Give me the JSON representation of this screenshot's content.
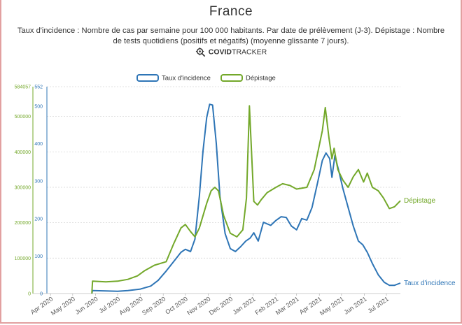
{
  "header": {
    "title": "France",
    "subtitle_line1": "Taux d'incidence : Nombre de cas par semaine pour 100 000 habitants. Par date de prélèvement (J-3). Dépistage : Nombre",
    "subtitle_line2": "de tests quotidiens (positifs et négatifs) (moyenne glissante 7 jours).",
    "brand_bold": "COVID",
    "brand_rest": "TRACKER",
    "brand_icon": "virus-search-icon"
  },
  "colors": {
    "incidence": "#2e75b6",
    "depistage": "#73a82a",
    "grid": "#d9d9d9"
  },
  "chart_data": {
    "type": "line",
    "title": "France",
    "legend_position": "top",
    "grid": true,
    "x_ticks": [
      "Apr 2020",
      "May 2020",
      "Jun 2020",
      "Jul 2020",
      "Aug 2020",
      "Sep 2020",
      "Oct 2020",
      "Nov 2020",
      "Dec 2020",
      "Jan 2021",
      "Feb 2021",
      "Mar 2021",
      "Apr 2021",
      "May 2021",
      "Jun 2021",
      "Jul 2021"
    ],
    "y_left": {
      "ticks": [
        0,
        100000,
        200000,
        300000,
        400000,
        500000
      ],
      "top_label": "584057",
      "max": 584057
    },
    "y_right": {
      "ticks": [
        0,
        100,
        200,
        300,
        400,
        500
      ],
      "top_label": "552",
      "max": 552
    },
    "series": [
      {
        "name": "Taux d'incidence",
        "end_label": "Taux d'incidence",
        "axis": "right",
        "points": [
          [
            "2020-05-27",
            0
          ],
          [
            "2020-05-28",
            8
          ],
          [
            "2020-06-15",
            7
          ],
          [
            "2020-07-01",
            6
          ],
          [
            "2020-07-15",
            8
          ],
          [
            "2020-08-01",
            12
          ],
          [
            "2020-08-15",
            20
          ],
          [
            "2020-08-25",
            35
          ],
          [
            "2020-09-05",
            60
          ],
          [
            "2020-09-15",
            85
          ],
          [
            "2020-09-25",
            110
          ],
          [
            "2020-10-01",
            118
          ],
          [
            "2020-10-08",
            112
          ],
          [
            "2020-10-14",
            145
          ],
          [
            "2020-10-20",
            260
          ],
          [
            "2020-10-25",
            380
          ],
          [
            "2020-10-30",
            470
          ],
          [
            "2020-11-03",
            505
          ],
          [
            "2020-11-07",
            503
          ],
          [
            "2020-11-12",
            400
          ],
          [
            "2020-11-17",
            260
          ],
          [
            "2020-11-24",
            160
          ],
          [
            "2020-12-01",
            120
          ],
          [
            "2020-12-08",
            112
          ],
          [
            "2020-12-15",
            125
          ],
          [
            "2020-12-22",
            140
          ],
          [
            "2020-12-28",
            148
          ],
          [
            "2021-01-02",
            162
          ],
          [
            "2021-01-08",
            140
          ],
          [
            "2021-01-15",
            190
          ],
          [
            "2021-01-25",
            182
          ],
          [
            "2021-02-01",
            195
          ],
          [
            "2021-02-08",
            205
          ],
          [
            "2021-02-15",
            203
          ],
          [
            "2021-02-22",
            180
          ],
          [
            "2021-03-01",
            170
          ],
          [
            "2021-03-08",
            200
          ],
          [
            "2021-03-15",
            196
          ],
          [
            "2021-03-22",
            230
          ],
          [
            "2021-03-30",
            300
          ],
          [
            "2021-04-05",
            355
          ],
          [
            "2021-04-10",
            375
          ],
          [
            "2021-04-15",
            360
          ],
          [
            "2021-04-18",
            310
          ],
          [
            "2021-04-22",
            368
          ],
          [
            "2021-04-27",
            330
          ],
          [
            "2021-05-03",
            280
          ],
          [
            "2021-05-10",
            230
          ],
          [
            "2021-05-17",
            180
          ],
          [
            "2021-05-24",
            140
          ],
          [
            "2021-05-30",
            130
          ],
          [
            "2021-06-05",
            110
          ],
          [
            "2021-06-12",
            80
          ],
          [
            "2021-06-20",
            50
          ],
          [
            "2021-06-28",
            30
          ],
          [
            "2021-07-05",
            22
          ],
          [
            "2021-07-12",
            22
          ],
          [
            "2021-07-20",
            28
          ]
        ]
      },
      {
        "name": "Dépistage",
        "end_label": "Dépistage",
        "axis": "left",
        "points": [
          [
            "2020-05-27",
            0
          ],
          [
            "2020-05-28",
            35000
          ],
          [
            "2020-06-15",
            33000
          ],
          [
            "2020-07-01",
            35000
          ],
          [
            "2020-07-15",
            40000
          ],
          [
            "2020-07-28",
            50000
          ],
          [
            "2020-08-07",
            65000
          ],
          [
            "2020-08-20",
            80000
          ],
          [
            "2020-09-05",
            90000
          ],
          [
            "2020-09-15",
            140000
          ],
          [
            "2020-09-25",
            185000
          ],
          [
            "2020-10-01",
            195000
          ],
          [
            "2020-10-08",
            175000
          ],
          [
            "2020-10-14",
            160000
          ],
          [
            "2020-10-20",
            185000
          ],
          [
            "2020-10-30",
            255000
          ],
          [
            "2020-11-05",
            290000
          ],
          [
            "2020-11-10",
            300000
          ],
          [
            "2020-11-15",
            290000
          ],
          [
            "2020-11-22",
            220000
          ],
          [
            "2020-12-01",
            170000
          ],
          [
            "2020-12-10",
            160000
          ],
          [
            "2020-12-18",
            180000
          ],
          [
            "2020-12-23",
            270000
          ],
          [
            "2020-12-27",
            530000
          ],
          [
            "2021-01-02",
            260000
          ],
          [
            "2021-01-07",
            250000
          ],
          [
            "2021-01-12",
            265000
          ],
          [
            "2021-01-20",
            285000
          ],
          [
            "2021-02-01",
            300000
          ],
          [
            "2021-02-10",
            310000
          ],
          [
            "2021-02-20",
            305000
          ],
          [
            "2021-03-01",
            295000
          ],
          [
            "2021-03-15",
            300000
          ],
          [
            "2021-03-25",
            350000
          ],
          [
            "2021-04-05",
            460000
          ],
          [
            "2021-04-09",
            525000
          ],
          [
            "2021-04-14",
            440000
          ],
          [
            "2021-04-18",
            380000
          ],
          [
            "2021-04-21",
            410000
          ],
          [
            "2021-04-26",
            350000
          ],
          [
            "2021-05-03",
            320000
          ],
          [
            "2021-05-10",
            300000
          ],
          [
            "2021-05-17",
            330000
          ],
          [
            "2021-05-24",
            350000
          ],
          [
            "2021-05-31",
            315000
          ],
          [
            "2021-06-05",
            340000
          ],
          [
            "2021-06-12",
            300000
          ],
          [
            "2021-06-20",
            290000
          ],
          [
            "2021-06-27",
            270000
          ],
          [
            "2021-07-05",
            240000
          ],
          [
            "2021-07-12",
            245000
          ],
          [
            "2021-07-20",
            262000
          ]
        ]
      }
    ]
  }
}
